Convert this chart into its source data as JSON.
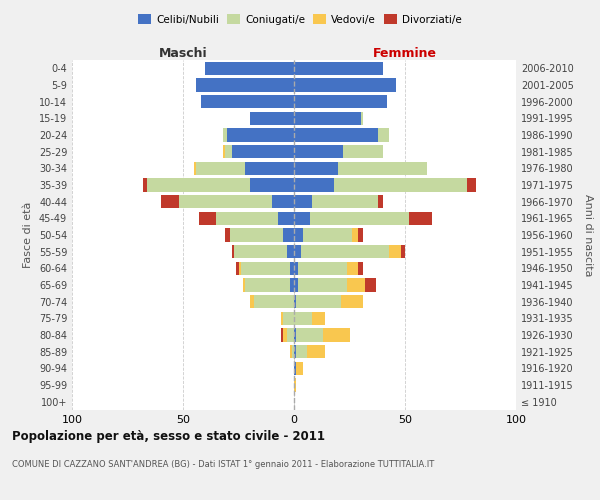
{
  "age_groups": [
    "100+",
    "95-99",
    "90-94",
    "85-89",
    "80-84",
    "75-79",
    "70-74",
    "65-69",
    "60-64",
    "55-59",
    "50-54",
    "45-49",
    "40-44",
    "35-39",
    "30-34",
    "25-29",
    "20-24",
    "15-19",
    "10-14",
    "5-9",
    "0-4"
  ],
  "birth_years": [
    "≤ 1910",
    "1911-1915",
    "1916-1920",
    "1921-1925",
    "1926-1930",
    "1931-1935",
    "1936-1940",
    "1941-1945",
    "1946-1950",
    "1951-1955",
    "1956-1960",
    "1961-1965",
    "1966-1970",
    "1971-1975",
    "1976-1980",
    "1981-1985",
    "1986-1990",
    "1991-1995",
    "1996-2000",
    "2001-2005",
    "2006-2010"
  ],
  "colors": {
    "celibi": "#4472c4",
    "coniugati": "#c5d9a0",
    "vedovi": "#f9c74f",
    "divorziati": "#c0392b"
  },
  "maschi": {
    "celibi": [
      0,
      0,
      0,
      0,
      0,
      0,
      0,
      2,
      2,
      3,
      5,
      7,
      10,
      20,
      22,
      28,
      30,
      20,
      42,
      44,
      40
    ],
    "coniugati": [
      0,
      0,
      0,
      1,
      3,
      5,
      18,
      20,
      22,
      24,
      24,
      28,
      42,
      46,
      22,
      3,
      2,
      0,
      0,
      0,
      0
    ],
    "vedovi": [
      0,
      0,
      0,
      1,
      2,
      1,
      2,
      1,
      1,
      0,
      0,
      0,
      0,
      0,
      1,
      1,
      0,
      0,
      0,
      0,
      0
    ],
    "divorziati": [
      0,
      0,
      0,
      0,
      1,
      0,
      0,
      0,
      1,
      1,
      2,
      8,
      8,
      2,
      0,
      0,
      0,
      0,
      0,
      0,
      0
    ]
  },
  "femmine": {
    "celibi": [
      0,
      0,
      1,
      1,
      1,
      0,
      1,
      2,
      2,
      3,
      4,
      7,
      8,
      18,
      20,
      22,
      38,
      30,
      42,
      46,
      40
    ],
    "coniugati": [
      0,
      0,
      0,
      5,
      12,
      8,
      20,
      22,
      22,
      40,
      22,
      45,
      30,
      60,
      40,
      18,
      5,
      1,
      0,
      0,
      0
    ],
    "vedovi": [
      0,
      1,
      3,
      8,
      12,
      6,
      10,
      8,
      5,
      5,
      3,
      0,
      0,
      0,
      0,
      0,
      0,
      0,
      0,
      0,
      0
    ],
    "divorziati": [
      0,
      0,
      0,
      0,
      0,
      0,
      0,
      5,
      2,
      2,
      2,
      10,
      2,
      4,
      0,
      0,
      0,
      0,
      0,
      0,
      0
    ]
  },
  "title": "Popolazione per età, sesso e stato civile - 2011",
  "subtitle": "COMUNE DI CAZZANO SANT'ANDREA (BG) - Dati ISTAT 1° gennaio 2011 - Elaborazione TUTTITALIA.IT",
  "maschi_label": "Maschi",
  "femmine_label": "Femmine",
  "ylabel_left": "Fasce di età",
  "ylabel_right": "Anni di nascita",
  "xlim": 100,
  "bg_color": "#f0f0f0",
  "plot_bg": "#ffffff",
  "legend_labels": [
    "Celibi/Nubili",
    "Coniugati/e",
    "Vedovi/e",
    "Divorziati/e"
  ]
}
